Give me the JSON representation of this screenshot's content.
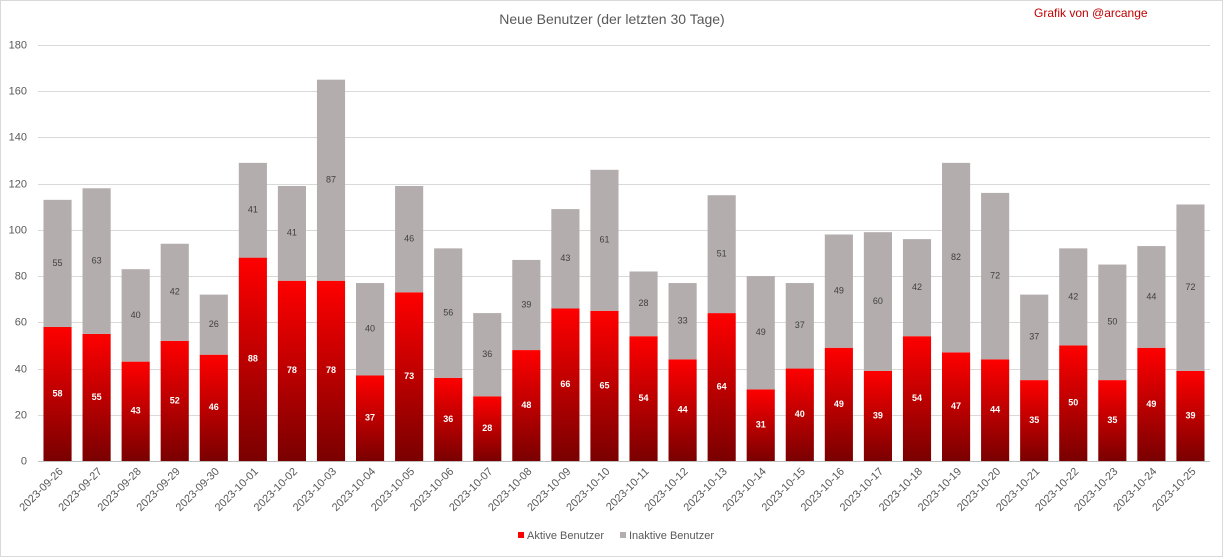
{
  "colors": {
    "active_top": "#ff0000",
    "active_bottom": "#7a0000",
    "inactive": "#b3adad",
    "credit": "#c00000"
  },
  "chart_data": {
    "type": "bar",
    "stacked": true,
    "title": "Neue Benutzer (der letzten 30 Tage)",
    "credit": "Grafik von @arcange",
    "xlabel": "",
    "ylabel": "",
    "ylim": [
      0,
      180
    ],
    "yticks": [
      0,
      20,
      40,
      60,
      80,
      100,
      120,
      140,
      160,
      180
    ],
    "grid": true,
    "legend_position": "bottom-center",
    "categories": [
      "2023-09-26",
      "2023-09-27",
      "2023-09-28",
      "2023-09-29",
      "2023-09-30",
      "2023-10-01",
      "2023-10-02",
      "2023-10-03",
      "2023-10-04",
      "2023-10-05",
      "2023-10-06",
      "2023-10-07",
      "2023-10-08",
      "2023-10-09",
      "2023-10-10",
      "2023-10-11",
      "2023-10-12",
      "2023-10-13",
      "2023-10-14",
      "2023-10-15",
      "2023-10-16",
      "2023-10-17",
      "2023-10-18",
      "2023-10-19",
      "2023-10-20",
      "2023-10-21",
      "2023-10-22",
      "2023-10-23",
      "2023-10-24",
      "2023-10-25"
    ],
    "series": [
      {
        "name": "Aktive Benutzer",
        "values": [
          58,
          55,
          43,
          52,
          46,
          88,
          78,
          78,
          37,
          73,
          36,
          28,
          48,
          66,
          65,
          54,
          44,
          64,
          31,
          40,
          49,
          39,
          54,
          47,
          44,
          35,
          50,
          35,
          49,
          39
        ]
      },
      {
        "name": "Inaktive Benutzer",
        "values": [
          55,
          63,
          40,
          42,
          26,
          41,
          41,
          87,
          40,
          46,
          56,
          36,
          39,
          43,
          61,
          28,
          33,
          51,
          49,
          37,
          49,
          60,
          42,
          82,
          72,
          37,
          42,
          50,
          44,
          72
        ]
      }
    ]
  }
}
